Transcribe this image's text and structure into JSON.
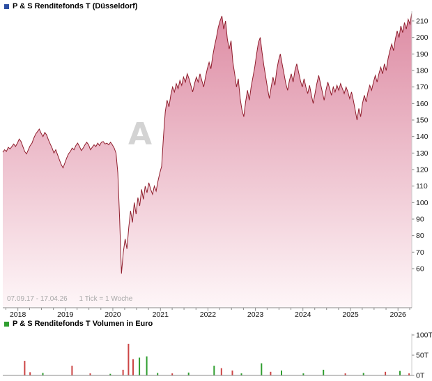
{
  "header": {
    "title": "P & S Renditefonds T (Düsseldorf)",
    "marker_color": "#2d4fa2"
  },
  "volume_header": {
    "title": "P & S Renditefonds T Volumen in Euro",
    "marker_color": "#2f9e2f"
  },
  "footer_note": {
    "period": "07.09.17 - 17.04.26",
    "tick_info": "1 Tick = 1 Woche"
  },
  "watermark": "A",
  "chart_data": [
    {
      "type": "area",
      "title": "P & S Renditefonds T (Düsseldorf)",
      "x_start": "2017-09-07",
      "x_end": "2026-04-17",
      "x_unit": "weeks",
      "total_weeks": 449,
      "tick_interval": "1 Woche",
      "ylim": [
        55,
        215
      ],
      "y_ticks": [
        210,
        200,
        190,
        180,
        170,
        160,
        150,
        140,
        130,
        120,
        110,
        100,
        90,
        80,
        70,
        60
      ],
      "x_tick_years": [
        2018,
        2019,
        2020,
        2021,
        2022,
        2023,
        2024,
        2025,
        2026
      ],
      "grid": "off",
      "legend": "top-left",
      "line_color": "#8f1d2c",
      "fill_top_color": "#dd8ba3",
      "fill_bottom_color": "#fef6f8",
      "values": [
        130.5,
        132,
        131,
        133.5,
        132.5,
        134,
        135.5,
        134,
        136,
        138.5,
        137,
        134,
        131,
        129.5,
        132,
        134.5,
        136,
        139,
        141.5,
        143,
        144.5,
        142,
        140,
        142.5,
        141,
        138,
        135.5,
        133,
        130,
        132,
        129,
        126,
        123,
        121,
        124,
        127,
        129.5,
        131,
        133,
        132,
        134.5,
        136,
        134,
        131.5,
        133,
        135,
        136.5,
        135,
        132,
        133.5,
        135,
        134,
        136,
        134.5,
        136.5,
        137,
        135.5,
        136,
        135,
        136.5,
        135,
        133,
        130,
        118,
        90,
        57,
        70,
        78,
        72,
        85,
        95,
        88,
        100,
        93,
        103,
        98,
        108,
        102,
        110,
        106,
        112,
        108,
        105,
        110,
        107,
        113,
        118,
        122,
        140,
        155,
        162,
        158,
        165,
        170,
        167,
        172,
        169,
        174,
        171,
        176,
        173,
        178,
        175,
        171,
        167,
        172,
        176,
        173,
        178,
        174,
        170,
        176,
        181,
        185,
        181,
        189,
        195,
        200,
        206,
        210,
        213,
        205,
        210,
        199,
        193,
        198,
        185,
        178,
        170,
        175,
        163,
        156,
        152,
        161,
        168,
        162,
        170,
        176,
        182,
        190,
        197,
        200,
        191,
        183,
        176,
        169,
        163,
        170,
        176,
        171,
        180,
        186,
        190,
        184,
        178,
        172,
        168,
        174,
        178,
        173,
        180,
        184,
        179,
        174,
        170,
        175,
        170,
        166,
        171,
        165,
        160,
        166,
        172,
        177,
        172,
        167,
        162,
        168,
        173,
        169,
        165,
        170,
        167,
        171,
        168,
        172,
        169,
        166,
        170,
        167,
        163,
        167,
        162,
        156,
        150,
        157,
        152,
        160,
        165,
        161,
        167,
        171,
        168,
        173,
        177,
        173,
        178,
        182,
        178,
        184,
        180,
        187,
        192,
        196,
        192,
        199,
        204,
        200,
        207,
        203,
        209,
        205,
        211,
        208,
        215
      ]
    },
    {
      "type": "bar",
      "title": "P & S Renditefonds T Volumen in Euro",
      "ylim": [
        0,
        100
      ],
      "y_ticks": [
        {
          "value": 100,
          "label": "100T"
        },
        {
          "value": 50,
          "label": "50T"
        },
        {
          "value": 0,
          "label": "0T"
        }
      ],
      "total_weeks": 449,
      "up_color": "#2f9e2f",
      "down_color": "#cc4444",
      "bars": [
        {
          "week": 24,
          "value": 36,
          "dir": "down"
        },
        {
          "week": 30,
          "value": 8,
          "dir": "down"
        },
        {
          "week": 44,
          "value": 6,
          "dir": "up"
        },
        {
          "week": 76,
          "value": 24,
          "dir": "down"
        },
        {
          "week": 96,
          "value": 5,
          "dir": "down"
        },
        {
          "week": 118,
          "value": 4,
          "dir": "up"
        },
        {
          "week": 132,
          "value": 14,
          "dir": "down"
        },
        {
          "week": 138,
          "value": 78,
          "dir": "down"
        },
        {
          "week": 143,
          "value": 40,
          "dir": "down"
        },
        {
          "week": 150,
          "value": 44,
          "dir": "up"
        },
        {
          "week": 158,
          "value": 47,
          "dir": "up"
        },
        {
          "week": 170,
          "value": 6,
          "dir": "up"
        },
        {
          "week": 186,
          "value": 5,
          "dir": "down"
        },
        {
          "week": 204,
          "value": 7,
          "dir": "up"
        },
        {
          "week": 232,
          "value": 24,
          "dir": "up"
        },
        {
          "week": 240,
          "value": 18,
          "dir": "down"
        },
        {
          "week": 252,
          "value": 12,
          "dir": "down"
        },
        {
          "week": 262,
          "value": 5,
          "dir": "up"
        },
        {
          "week": 284,
          "value": 30,
          "dir": "up"
        },
        {
          "week": 294,
          "value": 9,
          "dir": "down"
        },
        {
          "week": 306,
          "value": 12,
          "dir": "up"
        },
        {
          "week": 330,
          "value": 5,
          "dir": "up"
        },
        {
          "week": 352,
          "value": 14,
          "dir": "up"
        },
        {
          "week": 376,
          "value": 5,
          "dir": "down"
        },
        {
          "week": 396,
          "value": 6,
          "dir": "up"
        },
        {
          "week": 420,
          "value": 9,
          "dir": "down"
        },
        {
          "week": 436,
          "value": 11,
          "dir": "up"
        },
        {
          "week": 446,
          "value": 5,
          "dir": "down"
        }
      ]
    }
  ]
}
